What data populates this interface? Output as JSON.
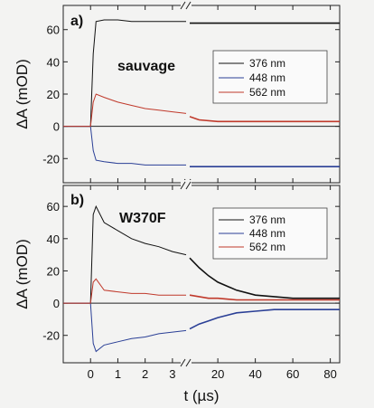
{
  "figure": {
    "ylabel": "ΔA (mOD)",
    "xlabel": "t (µs)",
    "x_break": "//",
    "background": "#f3f3f2"
  },
  "chart_data": [
    {
      "type": "line",
      "panel": "a)",
      "annotation": "sauvage",
      "ylabel": "ΔA (mOD)",
      "ylim": [
        -35,
        75
      ],
      "yticks": [
        -20,
        0,
        20,
        40,
        60
      ],
      "ylabels": [
        "-20",
        "0",
        "20",
        "40",
        "60"
      ],
      "x_segments": [
        {
          "xlim": [
            -1,
            3.5
          ],
          "ticks": [
            0,
            1,
            2,
            3
          ],
          "labels": [
            "0",
            "1",
            "2",
            "3"
          ]
        },
        {
          "xlim": [
            5,
            85
          ],
          "ticks": [
            20,
            40,
            60,
            80
          ],
          "labels": [
            "20",
            "40",
            "60",
            "80"
          ]
        }
      ],
      "legend": {
        "position": "middle-right",
        "entries": [
          "376 nm",
          "448 nm",
          "562 nm"
        ]
      },
      "series": [
        {
          "name": "376 nm",
          "color": "#111111",
          "early": {
            "x": [
              -1,
              -0.5,
              0,
              0.1,
              0.2,
              0.5,
              1,
              1.5,
              2,
              2.5,
              3,
              3.5
            ],
            "y": [
              0,
              0,
              0,
              45,
              65,
              66,
              66,
              65,
              65,
              65,
              65,
              65
            ]
          },
          "late": {
            "x": [
              5,
              10,
              20,
              30,
              40,
              50,
              60,
              70,
              80,
              85
            ],
            "y": [
              64,
              64,
              64,
              64,
              64,
              64,
              64,
              64,
              64,
              64
            ]
          }
        },
        {
          "name": "448 nm",
          "color": "#2a3f96",
          "early": {
            "x": [
              -1,
              -0.5,
              0,
              0.1,
              0.2,
              0.5,
              1,
              1.5,
              2,
              2.5,
              3,
              3.5
            ],
            "y": [
              0,
              0,
              0,
              -15,
              -21,
              -22,
              -23,
              -23,
              -24,
              -24,
              -24,
              -24
            ]
          },
          "late": {
            "x": [
              5,
              10,
              20,
              30,
              40,
              50,
              60,
              70,
              80,
              85
            ],
            "y": [
              -25,
              -25,
              -25,
              -25,
              -25,
              -25,
              -25,
              -25,
              -25,
              -25
            ]
          }
        },
        {
          "name": "562 nm",
          "color": "#c0392b",
          "early": {
            "x": [
              -1,
              -0.5,
              0,
              0.1,
              0.2,
              0.5,
              1,
              1.5,
              2,
              2.5,
              3,
              3.5
            ],
            "y": [
              0,
              0,
              0,
              15,
              20,
              18,
              15,
              13,
              11,
              10,
              9,
              8
            ]
          },
          "late": {
            "x": [
              5,
              10,
              20,
              30,
              40,
              50,
              60,
              70,
              80,
              85
            ],
            "y": [
              6,
              4,
              3,
              3,
              3,
              3,
              3,
              3,
              3,
              3
            ]
          }
        }
      ]
    },
    {
      "type": "line",
      "panel": "b)",
      "annotation": "W370F",
      "ylabel": "ΔA (mOD)",
      "ylim": [
        -37,
        73
      ],
      "yticks": [
        -20,
        0,
        20,
        40,
        60
      ],
      "ylabels": [
        "-20",
        "0",
        "20",
        "40",
        "60"
      ],
      "x_segments": [
        {
          "xlim": [
            -1,
            3.5
          ],
          "ticks": [
            0,
            1,
            2,
            3
          ],
          "labels": [
            "0",
            "1",
            "2",
            "3"
          ]
        },
        {
          "xlim": [
            5,
            85
          ],
          "ticks": [
            20,
            40,
            60,
            80
          ],
          "labels": [
            "20",
            "40",
            "60",
            "80"
          ]
        }
      ],
      "xlabel": "t (µs)",
      "legend": {
        "position": "top-right",
        "entries": [
          "376 nm",
          "448 nm",
          "562 nm"
        ]
      },
      "series": [
        {
          "name": "376 nm",
          "color": "#111111",
          "early": {
            "x": [
              -1,
              -0.5,
              0,
              0.1,
              0.2,
              0.5,
              1,
              1.5,
              2,
              2.5,
              3,
              3.5
            ],
            "y": [
              0,
              0,
              0,
              55,
              60,
              50,
              45,
              40,
              37,
              35,
              32,
              30
            ]
          },
          "late": {
            "x": [
              5,
              10,
              15,
              20,
              30,
              40,
              50,
              60,
              70,
              80,
              85
            ],
            "y": [
              28,
              22,
              17,
              13,
              8,
              5,
              4,
              3,
              3,
              3,
              3
            ]
          }
        },
        {
          "name": "448 nm",
          "color": "#2a3f96",
          "early": {
            "x": [
              -1,
              -0.5,
              0,
              0.1,
              0.2,
              0.5,
              1,
              1.5,
              2,
              2.5,
              3,
              3.5
            ],
            "y": [
              0,
              0,
              0,
              -25,
              -30,
              -26,
              -24,
              -22,
              -21,
              -19,
              -18,
              -17
            ]
          },
          "late": {
            "x": [
              5,
              10,
              15,
              20,
              30,
              40,
              50,
              60,
              70,
              80,
              85
            ],
            "y": [
              -16,
              -13,
              -11,
              -9,
              -6,
              -5,
              -4,
              -4,
              -4,
              -4,
              -4
            ]
          }
        },
        {
          "name": "562 nm",
          "color": "#c0392b",
          "early": {
            "x": [
              -1,
              -0.5,
              0,
              0.1,
              0.2,
              0.5,
              1,
              1.5,
              2,
              2.5,
              3,
              3.5
            ],
            "y": [
              0,
              0,
              0,
              13,
              15,
              8,
              7,
              6,
              6,
              5,
              5,
              5
            ]
          },
          "late": {
            "x": [
              5,
              10,
              15,
              20,
              30,
              40,
              50,
              60,
              70,
              80,
              85
            ],
            "y": [
              5,
              4,
              3,
              3,
              2,
              2,
              2,
              2,
              2,
              2,
              2
            ]
          }
        }
      ]
    }
  ]
}
